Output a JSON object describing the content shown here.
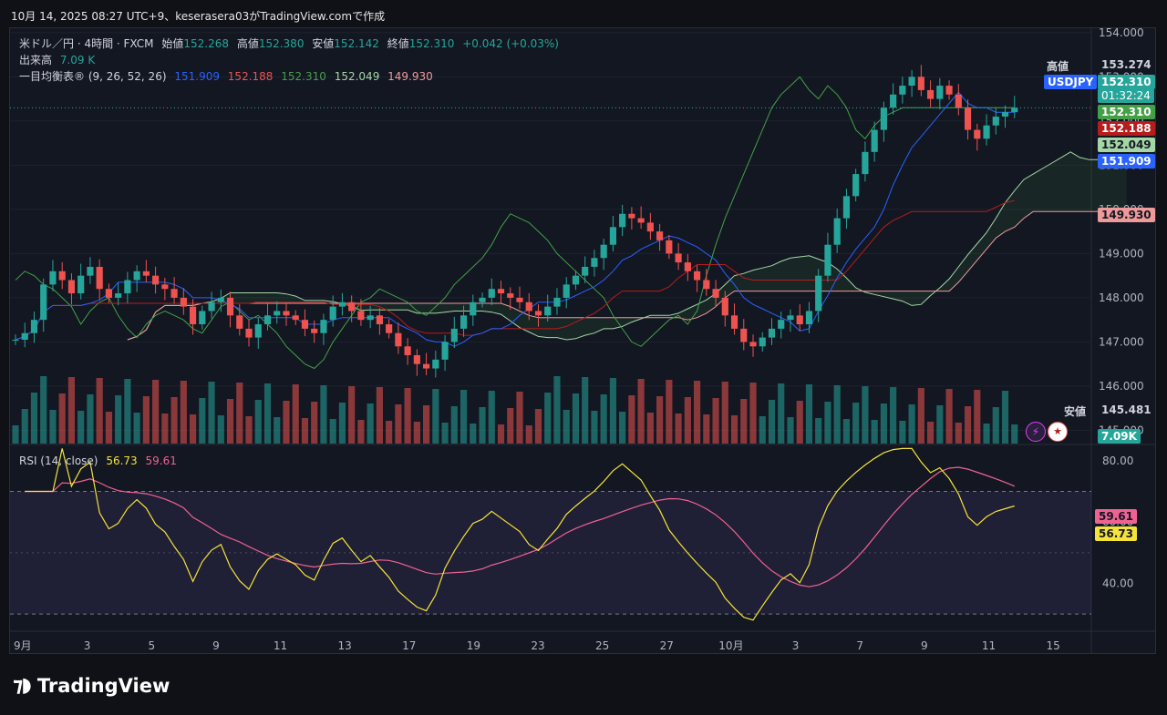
{
  "header": {
    "text": "10月 14, 2025 08:27 UTC+9、keserasera03がTradingView.comで作成"
  },
  "legend": {
    "symbol": "米ドル／円 · 4時間 · FXCM",
    "open_label": "始値",
    "open": "152.268",
    "high_label": "高値",
    "high": "152.380",
    "low_label": "安値",
    "low": "152.142",
    "close_label": "終値",
    "close": "152.310",
    "change": "+0.042 (+0.03%)",
    "volume_label": "出来高",
    "volume": "7.09 K",
    "ichimoku_label": "一目均衡表® (9, 26, 52, 26)",
    "ichimoku_values": [
      "151.909",
      "152.188",
      "152.310",
      "152.049",
      "149.930"
    ]
  },
  "rsi_legend": {
    "label": "RSI (14, close)",
    "rsi": "56.73",
    "ma": "59.61"
  },
  "price_tags": {
    "high_label": "高値",
    "high": "153.274",
    "symbol": "USDJPY",
    "last": "152.310",
    "countdown": "01:32:24",
    "chikou": "152.310",
    "kijun": "152.188",
    "span_a": "152.049",
    "tenkan": "151.909",
    "span_b": "149.930",
    "low_label": "安値",
    "low": "145.481",
    "volume": "7.09K",
    "rsi_ma": "59.61",
    "rsi": "56.73"
  },
  "colors": {
    "up": "#26a69a",
    "down": "#ef5350",
    "tenkan": "#2962ff",
    "kijun": "#b71c1c",
    "chikou": "#43a047",
    "span_a": "#a5d6a7",
    "span_b": "#ef9a9a",
    "rsi": "#f5e33b",
    "rsi_ma": "#f06292"
  },
  "branding": {
    "name": "TradingView"
  },
  "chart_data": {
    "type": "candlestick",
    "price_axis": {
      "ticks": [
        "154.000",
        "153.000",
        "152.000",
        "151.000",
        "150.000",
        "149.000",
        "148.000",
        "147.000",
        "146.000",
        "145.000"
      ],
      "range": [
        144.7,
        154.1
      ]
    },
    "rsi_axis": {
      "ticks": [
        "80.00",
        "60.00",
        "40.00"
      ],
      "range": [
        25,
        85
      ],
      "bands": [
        30,
        70
      ]
    },
    "x_axis": {
      "labels": [
        "9月",
        "3",
        "5",
        "9",
        "11",
        "13",
        "17",
        "19",
        "23",
        "25",
        "27",
        "10月",
        "3",
        "7",
        "9",
        "11",
        "15"
      ]
    },
    "close_series": [
      147.05,
      147.2,
      147.5,
      148.3,
      148.6,
      148.4,
      148.1,
      148.5,
      148.7,
      148.2,
      148.0,
      148.1,
      148.4,
      148.6,
      148.5,
      148.3,
      148.2,
      148.0,
      147.8,
      147.4,
      147.7,
      147.9,
      148.0,
      147.6,
      147.3,
      147.1,
      147.4,
      147.6,
      147.7,
      147.6,
      147.5,
      147.3,
      147.2,
      147.5,
      147.8,
      147.9,
      147.7,
      147.5,
      147.6,
      147.4,
      147.2,
      146.9,
      146.7,
      146.5,
      146.4,
      146.6,
      147.0,
      147.3,
      147.6,
      147.9,
      148.0,
      148.2,
      148.1,
      148.0,
      147.9,
      147.7,
      147.6,
      147.8,
      148.0,
      148.3,
      148.5,
      148.7,
      148.9,
      149.2,
      149.6,
      149.9,
      149.8,
      149.7,
      149.5,
      149.3,
      149.0,
      148.8,
      148.6,
      148.4,
      148.2,
      148.0,
      147.6,
      147.3,
      147.0,
      146.9,
      147.1,
      147.3,
      147.5,
      147.6,
      147.4,
      147.7,
      148.5,
      149.2,
      149.8,
      150.3,
      150.8,
      151.3,
      151.8,
      152.3,
      152.6,
      152.8,
      153.0,
      152.7,
      152.5,
      152.8,
      152.6,
      152.3,
      151.8,
      151.6,
      151.9,
      152.1,
      152.2,
      152.3
    ],
    "volume": {
      "last": "7.09K"
    },
    "rsi": {
      "value": 56.73,
      "ma": 59.61
    }
  }
}
